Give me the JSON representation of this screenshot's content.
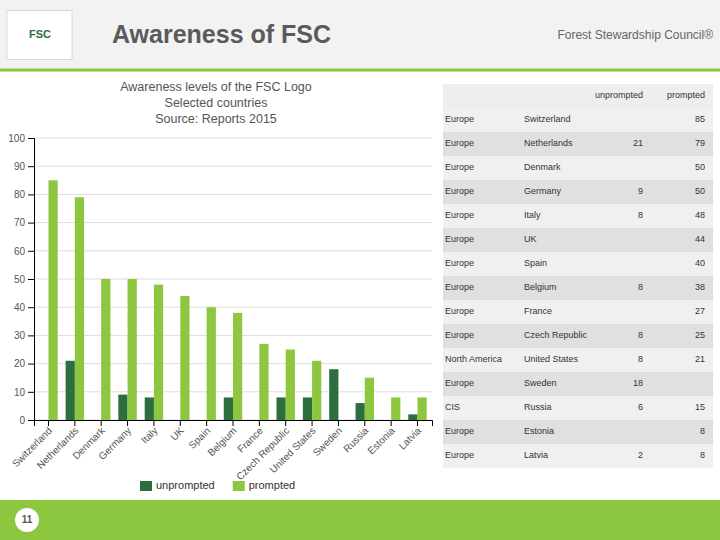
{
  "chart_data": {
    "type": "bar",
    "title": "Awareness of FSC",
    "subtitle": [
      "Awareness levels of the FSC Logo",
      "Selected countries",
      "Source: Reports 2015"
    ],
    "annotations": [
      "FSC",
      "Forest Stewardship Council®",
      "11"
    ],
    "categories": [
      "Switzerland",
      "Netherlands",
      "Denmark",
      "Germany",
      "Italy",
      "UK",
      "Spain",
      "Belgium",
      "France",
      "Czech Republic",
      "United States",
      "Sweden",
      "Russia",
      "Estonia",
      "Latvia"
    ],
    "series": [
      {
        "name": "unprompted",
        "color": "#2d6e3e",
        "values": [
          null,
          21,
          null,
          9,
          8,
          null,
          null,
          8,
          null,
          8,
          8,
          18,
          6,
          null,
          2
        ]
      },
      {
        "name": "prompted",
        "color": "#8dc63f",
        "values": [
          85,
          79,
          50,
          50,
          48,
          44,
          40,
          38,
          27,
          25,
          21,
          null,
          15,
          8,
          8
        ]
      }
    ],
    "ylim": [
      0,
      100
    ],
    "yticks": [
      0,
      10,
      20,
      30,
      40,
      50,
      60,
      70,
      80,
      90,
      100
    ],
    "grid": true,
    "legend": "bottom",
    "table": {
      "regions": [
        "Europe",
        "Europe",
        "Europe",
        "Europe",
        "Europe",
        "Europe",
        "Europe",
        "Europe",
        "Europe",
        "Europe",
        "North America",
        "Europe",
        "CIS",
        "Europe",
        "Europe"
      ]
    }
  }
}
